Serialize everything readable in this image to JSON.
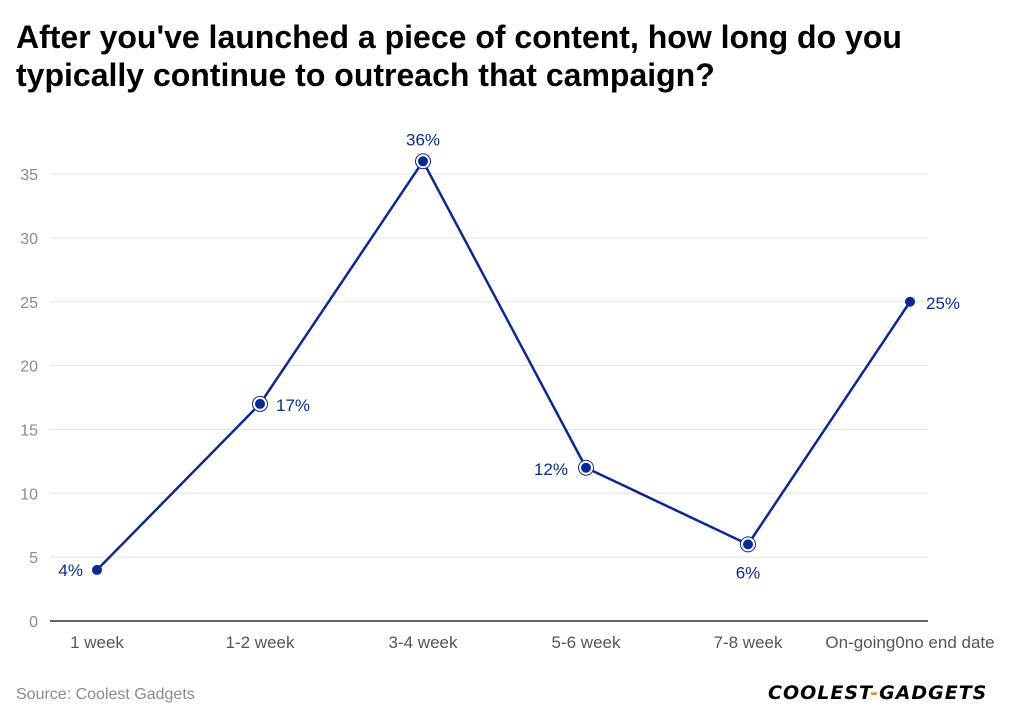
{
  "chart_data": {
    "type": "line",
    "title": "After you've launched a piece of content, how long do you typically continue to outreach that campaign?",
    "xlabel": "",
    "ylabel": "",
    "categories": [
      "1 week",
      "1-2 week",
      "3-4 week",
      "5-6 week",
      "7-8 week",
      "On-going0no end date"
    ],
    "series": [
      {
        "values": [
          4,
          17,
          36,
          12,
          6,
          25
        ],
        "labels": [
          "4%",
          "17%",
          "36%",
          "12%",
          "6%",
          "25%"
        ]
      }
    ],
    "ylim": [
      0,
      35
    ],
    "yticks": [
      0,
      5,
      10,
      15,
      20,
      25,
      30,
      35
    ],
    "grid": true,
    "legend": "none",
    "colors": {
      "line": "#0a2a8f",
      "grid": "#e3e3e3",
      "axis": "#333333",
      "tick_label": "#8a8a8a",
      "category_label": "#555555"
    }
  },
  "source": "Source: Coolest Gadgets",
  "logo": {
    "left": "COOLEST",
    "sep": "-",
    "right": "GADGETS"
  }
}
